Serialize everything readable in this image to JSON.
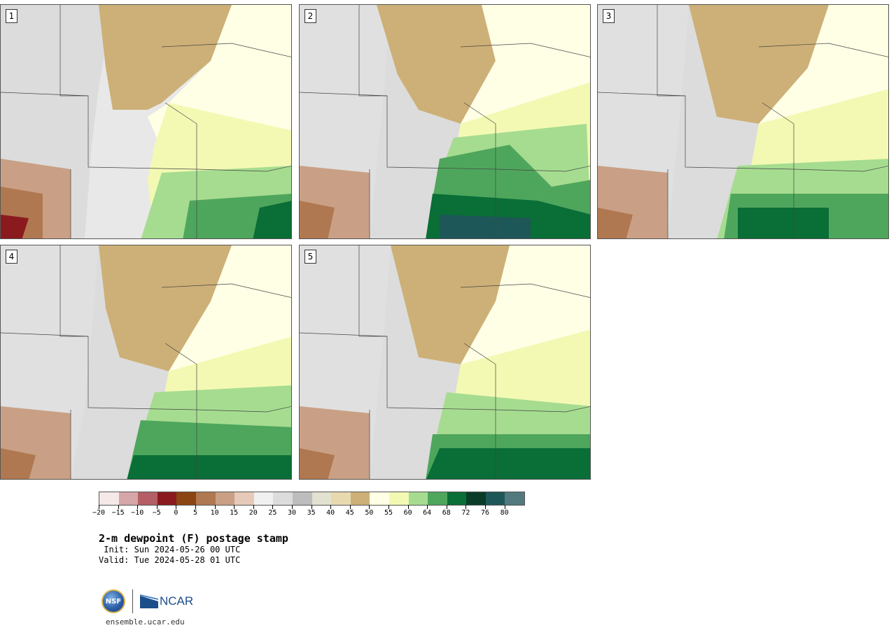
{
  "title": "2-m dewpoint (F) postage stamp",
  "init": " Init: Sun 2024-05-26 00 UTC",
  "valid": "Valid: Tue 2024-05-28 01 UTC",
  "website": "ensemble.ucar.edu",
  "logos": {
    "nsf": "NSF",
    "ncar": "NCAR"
  },
  "members": [
    "1",
    "2",
    "3",
    "4",
    "5"
  ],
  "colorbar": {
    "colors": [
      "#f5e8e8",
      "#d6a5a8",
      "#b35f65",
      "#8b1a1e",
      "#8b4513",
      "#b07850",
      "#c9a085",
      "#e6c9b8",
      "#f0f0f0",
      "#dcdcdc",
      "#bdbdbd",
      "#e3e1cf",
      "#e8d9b0",
      "#cdb077",
      "#ffffe6",
      "#f3f9b3",
      "#a6dc90",
      "#4ea65c",
      "#0a6e37",
      "#093d28",
      "#1e5757",
      "#527a7e"
    ],
    "tick_labels": [
      "−20",
      "−15",
      "−10",
      "−5",
      "0",
      "5",
      "10",
      "15",
      "20",
      "25",
      "30",
      "35",
      "40",
      "45",
      "50",
      "55",
      "60",
      "64",
      "68",
      "72",
      "76",
      "80"
    ]
  }
}
